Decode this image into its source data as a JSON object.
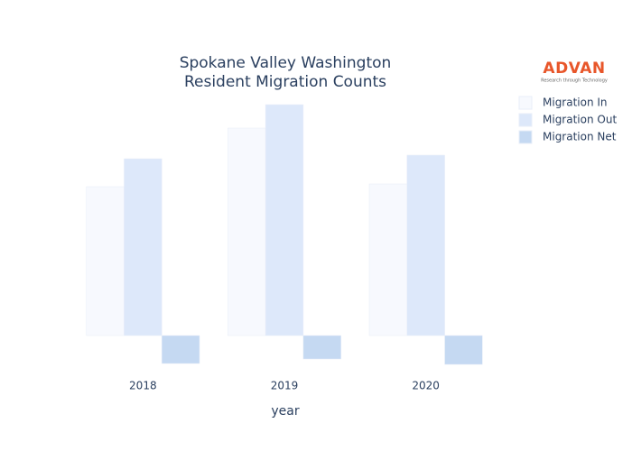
{
  "chart_data": {
    "type": "bar",
    "title": [
      "Spokane Valley Washington",
      "Resident Migration Counts"
    ],
    "logo": {
      "name": "ADVAN",
      "tagline": "Research through Technology"
    },
    "x_label": "year",
    "categories": [
      "2018",
      "2019",
      "2020"
    ],
    "series": [
      {
        "name": "Migration In",
        "color": "#f7f9fe",
        "values": [
          16500,
          23000,
          16800
        ]
      },
      {
        "name": "Migration Out",
        "color": "#dde8fa",
        "values": [
          19600,
          25600,
          20000
        ]
      },
      {
        "name": "Migration Net",
        "color": "#c5d9f2",
        "values": [
          -3100,
          -2600,
          -3200
        ]
      }
    ],
    "ylim": [
      -3800,
      27200
    ],
    "legend": "top-right"
  }
}
